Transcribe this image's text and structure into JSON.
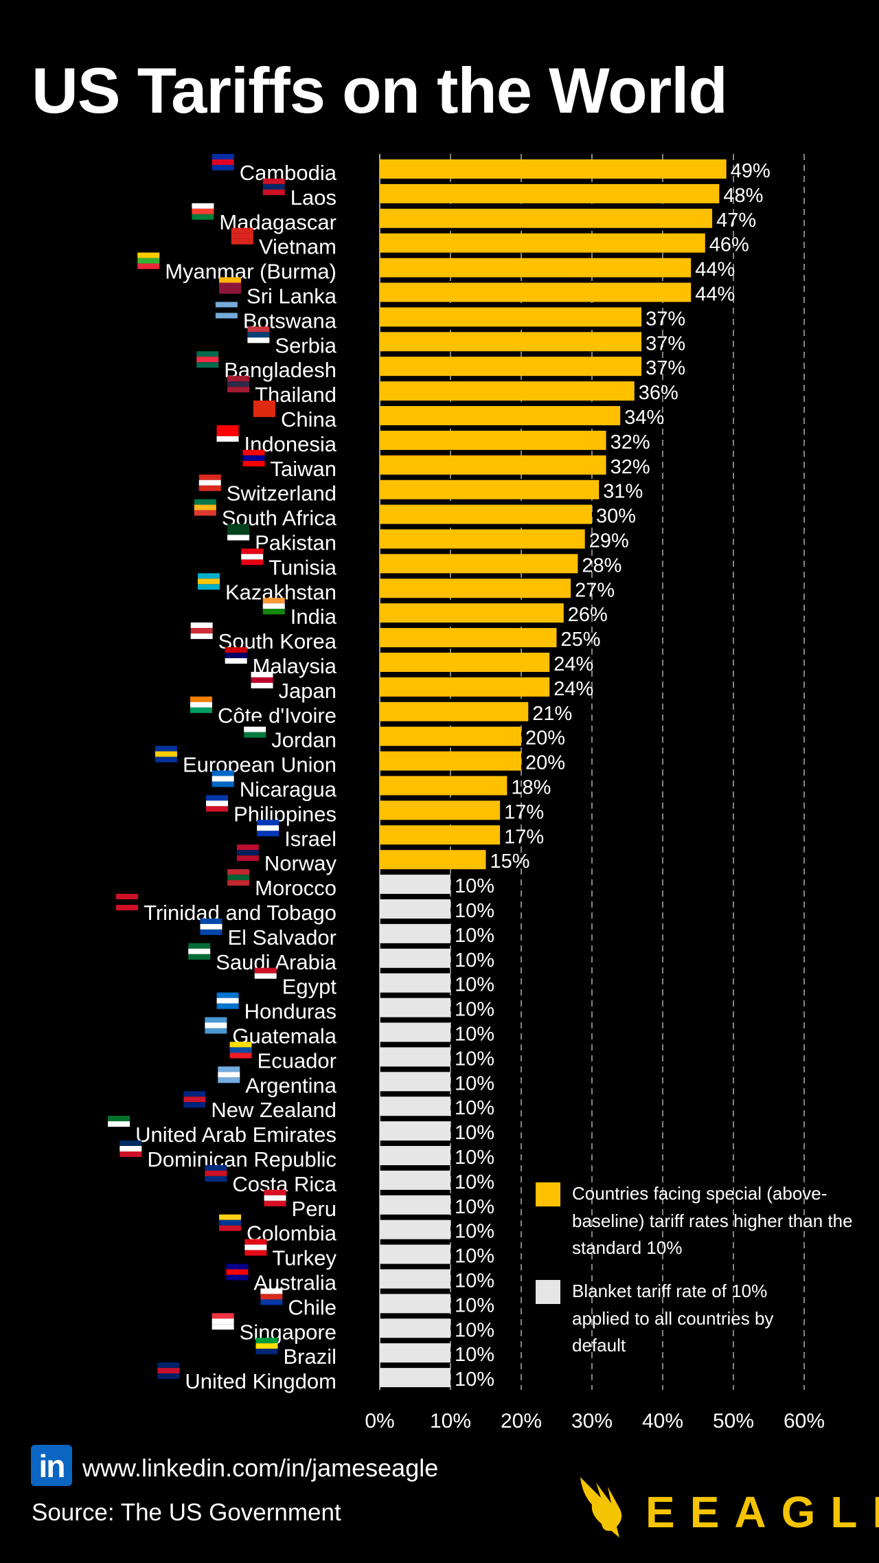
{
  "title": "US Tariffs on the World",
  "colors": {
    "special": "#FFC000",
    "baseline": "#E6E6E6",
    "background": "#000000",
    "text": "#FFFFFF",
    "brand": "#F5C400",
    "linkedin": "#0A66C2"
  },
  "chart_data": {
    "type": "bar",
    "orientation": "horizontal",
    "xlim": [
      0,
      60
    ],
    "xticks": [
      "0%",
      "10%",
      "20%",
      "30%",
      "40%",
      "50%",
      "60%"
    ],
    "xtick_values": [
      0,
      10,
      20,
      30,
      40,
      50,
      60
    ],
    "grid": "vertical dashed",
    "legend_placement": "bottom-right",
    "categories": [
      "Cambodia",
      "Laos",
      "Madagascar",
      "Vietnam",
      "Myanmar (Burma)",
      "Sri Lanka",
      "Botswana",
      "Serbia",
      "Bangladesh",
      "Thailand",
      "China",
      "Indonesia",
      "Taiwan",
      "Switzerland",
      "South Africa",
      "Pakistan",
      "Tunisia",
      "Kazakhstan",
      "India",
      "South Korea",
      "Malaysia",
      "Japan",
      "Côte d'Ivoire",
      "Jordan",
      "European Union",
      "Nicaragua",
      "Philippines",
      "Israel",
      "Norway",
      "Morocco",
      "Trinidad and Tobago",
      "El Salvador",
      "Saudi Arabia",
      "Egypt",
      "Honduras",
      "Guatemala",
      "Ecuador",
      "Argentina",
      "New Zealand",
      "United Arab Emirates",
      "Dominican Republic",
      "Costa Rica",
      "Peru",
      "Colombia",
      "Turkey",
      "Australia",
      "Chile",
      "Singapore",
      "Brazil",
      "United Kingdom"
    ],
    "values": [
      49,
      48,
      47,
      46,
      44,
      44,
      37,
      37,
      37,
      36,
      34,
      32,
      32,
      31,
      30,
      29,
      28,
      27,
      26,
      25,
      24,
      24,
      21,
      20,
      20,
      18,
      17,
      17,
      15,
      10,
      10,
      10,
      10,
      10,
      10,
      10,
      10,
      10,
      10,
      10,
      10,
      10,
      10,
      10,
      10,
      10,
      10,
      10,
      10,
      10
    ],
    "value_labels": [
      "49%",
      "48%",
      "47%",
      "46%",
      "44%",
      "44%",
      "37%",
      "37%",
      "37%",
      "36%",
      "34%",
      "32%",
      "32%",
      "31%",
      "30%",
      "29%",
      "28%",
      "27%",
      "26%",
      "25%",
      "24%",
      "24%",
      "21%",
      "20%",
      "20%",
      "18%",
      "17%",
      "17%",
      "15%",
      "10%",
      "10%",
      "10%",
      "10%",
      "10%",
      "10%",
      "10%",
      "10%",
      "10%",
      "10%",
      "10%",
      "10%",
      "10%",
      "10%",
      "10%",
      "10%",
      "10%",
      "10%",
      "10%",
      "10%",
      "10%"
    ],
    "flag_colors": [
      [
        "#032ea1",
        "#e00025",
        "#032ea1"
      ],
      [
        "#ce1126",
        "#002868",
        "#ce1126"
      ],
      [
        "#ffffff",
        "#fc3d32",
        "#007e3a"
      ],
      [
        "#da251d",
        "#da251d",
        "#da251d"
      ],
      [
        "#fecb00",
        "#34b233",
        "#ea2839"
      ],
      [
        "#ffb700",
        "#8d153a",
        "#8d153a"
      ],
      [
        "#75aadb",
        "#000000",
        "#75aadb"
      ],
      [
        "#c6363c",
        "#0c4076",
        "#ffffff"
      ],
      [
        "#006a4e",
        "#f42a41",
        "#006a4e"
      ],
      [
        "#a51931",
        "#2d2a4a",
        "#a51931"
      ],
      [
        "#de2910",
        "#de2910",
        "#de2910"
      ],
      [
        "#ff0000",
        "#ff0000",
        "#ffffff"
      ],
      [
        "#fe0000",
        "#000095",
        "#fe0000"
      ],
      [
        "#da291c",
        "#ffffff",
        "#da291c"
      ],
      [
        "#007749",
        "#ffb81c",
        "#de3831"
      ],
      [
        "#01411c",
        "#01411c",
        "#ffffff"
      ],
      [
        "#e70013",
        "#ffffff",
        "#e70013"
      ],
      [
        "#00afca",
        "#fec50c",
        "#00afca"
      ],
      [
        "#ff9933",
        "#ffffff",
        "#138808"
      ],
      [
        "#ffffff",
        "#cd2e3a",
        "#ffffff"
      ],
      [
        "#cc0001",
        "#010066",
        "#ffffff"
      ],
      [
        "#ffffff",
        "#bc002d",
        "#ffffff"
      ],
      [
        "#f77f00",
        "#ffffff",
        "#009e60"
      ],
      [
        "#000000",
        "#ffffff",
        "#007a3d"
      ],
      [
        "#003399",
        "#ffcc00",
        "#003399"
      ],
      [
        "#0067c6",
        "#ffffff",
        "#0067c6"
      ],
      [
        "#0038a8",
        "#ffffff",
        "#ce1126"
      ],
      [
        "#0038b8",
        "#ffffff",
        "#0038b8"
      ],
      [
        "#ba0c2f",
        "#00205b",
        "#ba0c2f"
      ],
      [
        "#c1272d",
        "#006233",
        "#c1272d"
      ],
      [
        "#ce1126",
        "#000000",
        "#ce1126"
      ],
      [
        "#0047ab",
        "#ffffff",
        "#0047ab"
      ],
      [
        "#006c35",
        "#ffffff",
        "#006c35"
      ],
      [
        "#ce1126",
        "#ffffff",
        "#000000"
      ],
      [
        "#0073cf",
        "#ffffff",
        "#0073cf"
      ],
      [
        "#4997d0",
        "#ffffff",
        "#4997d0"
      ],
      [
        "#ffdd00",
        "#034ea2",
        "#ed1c24"
      ],
      [
        "#74acdf",
        "#ffffff",
        "#74acdf"
      ],
      [
        "#00247d",
        "#cc142b",
        "#00247d"
      ],
      [
        "#00732f",
        "#ffffff",
        "#000000"
      ],
      [
        "#002d62",
        "#ffffff",
        "#ce1126"
      ],
      [
        "#002b7f",
        "#ce1126",
        "#002b7f"
      ],
      [
        "#d91023",
        "#ffffff",
        "#d91023"
      ],
      [
        "#fcd116",
        "#003893",
        "#ce1126"
      ],
      [
        "#e30a17",
        "#ffffff",
        "#e30a17"
      ],
      [
        "#00008b",
        "#ff0000",
        "#00008b"
      ],
      [
        "#ffffff",
        "#d52b1e",
        "#0039a6"
      ],
      [
        "#ef3340",
        "#ffffff",
        "#ffffff"
      ],
      [
        "#009c3b",
        "#ffdf00",
        "#002776"
      ],
      [
        "#012169",
        "#c8102e",
        "#012169"
      ]
    ],
    "legend": [
      {
        "label": "Countries facing special (above-baseline) tariff rates higher than the standard 10%",
        "color": "#FFC000"
      },
      {
        "label": "Blanket tariff rate of 10% applied to all countries by default",
        "color": "#E6E6E6"
      }
    ]
  },
  "footer": {
    "linkedin_icon": "linkedin-icon",
    "linkedin_icon_text": "in",
    "url": "www.linkedin.com/in/jameseagle",
    "source": "Source: The US Government",
    "logo_text": "EEAGLI",
    "logo_icon": "eagle-icon"
  }
}
